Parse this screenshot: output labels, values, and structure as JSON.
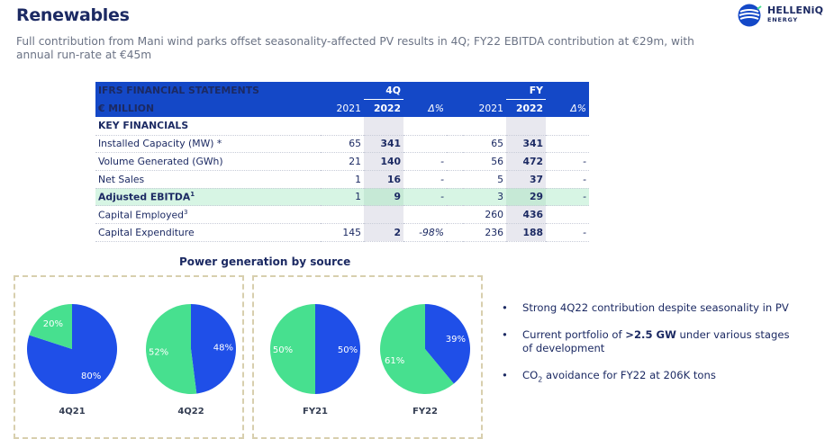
{
  "header": {
    "title": "Renewables",
    "subtitle": "Full contribution from Mani wind parks offset seasonality-affected PV results in 4Q; FY22 EBITDA contribution at €29m, with annual run-rate at €45m"
  },
  "logo": {
    "name": "HELLENiQ",
    "sub": "ENERGY"
  },
  "table": {
    "header1": {
      "label": "IFRS FINANCIAL STATEMENTS",
      "q": "4Q",
      "fy": "FY"
    },
    "header2": {
      "label": "€ MILLION",
      "c2021": "2021",
      "c2022": "2022",
      "d": "Δ%",
      "f2021": "2021",
      "f2022": "2022",
      "fd": "Δ%"
    },
    "rows": [
      {
        "label": "KEY FINANCIALS",
        "q21": "",
        "q22": "",
        "qd": "",
        "f21": "",
        "f22": "",
        "fd": ""
      },
      {
        "label": "Installed Capacity (MW) *",
        "q21": "65",
        "q22": "341",
        "qd": "",
        "f21": "65",
        "f22": "341",
        "fd": ""
      },
      {
        "label": "Volume Generated (GWh)",
        "q21": "21",
        "q22": "140",
        "qd": "-",
        "f21": "56",
        "f22": "472",
        "fd": "-"
      },
      {
        "label": "Net Sales",
        "q21": "1",
        "q22": "16",
        "qd": "-",
        "f21": "5",
        "f22": "37",
        "fd": "-"
      },
      {
        "label": "Adjusted EBITDA",
        "sup": "1",
        "q21": "1",
        "q22": "9",
        "qd": "-",
        "f21": "3",
        "f22": "29",
        "fd": "-"
      },
      {
        "label": "Capital Employed",
        "sup": "3",
        "q21": "",
        "q22": "",
        "qd": "",
        "f21": "260",
        "f22": "436",
        "fd": ""
      },
      {
        "label": "Capital Expenditure",
        "q21": "145",
        "q22": "2",
        "qd": "-98%",
        "f21": "236",
        "f22": "188",
        "fd": "-"
      }
    ]
  },
  "power": {
    "title": "Power generation by source"
  },
  "chart_data": {
    "type": "pie",
    "title": "Power generation by source",
    "colors": {
      "wind": "#1f4fe8",
      "pv": "#47e08f"
    },
    "pies": [
      {
        "name": "4Q21",
        "slices": [
          {
            "value": 80,
            "label": "80%",
            "color": "#1f4fe8"
          },
          {
            "value": 20,
            "label": "20%",
            "color": "#47e08f"
          }
        ]
      },
      {
        "name": "4Q22",
        "slices": [
          {
            "value": 48,
            "label": "48%",
            "color": "#1f4fe8"
          },
          {
            "value": 52,
            "label": "52%",
            "color": "#47e08f"
          }
        ]
      },
      {
        "name": "FY21",
        "slices": [
          {
            "value": 50,
            "label": "50%",
            "color": "#1f4fe8"
          },
          {
            "value": 50,
            "label": "50%",
            "color": "#47e08f"
          }
        ]
      },
      {
        "name": "FY22",
        "slices": [
          {
            "value": 39,
            "label": "39%",
            "color": "#1f4fe8"
          },
          {
            "value": 61,
            "label": "61%",
            "color": "#47e08f"
          }
        ]
      }
    ]
  },
  "bullets": {
    "marker": "•",
    "b1": "Strong 4Q22 contribution despite seasonality in PV",
    "b2_pre": "Current portfolio of ",
    "b2_bold": ">2.5 GW",
    "b2_post": " under various stages of development",
    "b3_pre": "CO",
    "b3_sub": "2",
    "b3_post": " avoidance for FY22 at 206K tons"
  }
}
